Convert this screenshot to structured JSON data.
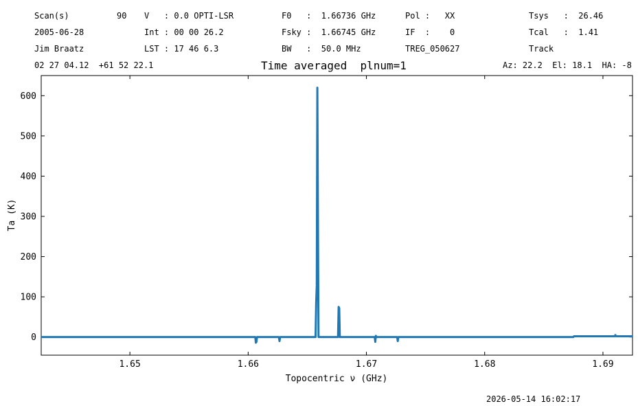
{
  "header": {
    "row1": {
      "scan_label": "Scan(s)",
      "scan_value": "90",
      "velocity": "V   : 0.0 OPTI-LSR",
      "f0": "F0   :  1.66736 GHz",
      "pol": "Pol :   XX",
      "tsys": "Tsys   :  26.46"
    },
    "row2": {
      "date": "2005-06-28",
      "int": "Int : 00 00 26.2",
      "fsky": "Fsky :  1.66745 GHz",
      "if": "IF  :    0",
      "tcal": "Tcal   :  1.41"
    },
    "row3": {
      "observer": "Jim Braatz",
      "lst": "LST : 17 46 6.3",
      "bw": "BW   :  50.0 MHz",
      "project": "TREG_050627",
      "mode": "Track"
    },
    "row4": {
      "coords": "02 27 04.12  +61 52 22.1",
      "azel": "Az: 22.2  El: 18.1  HA: -8"
    }
  },
  "timestamp": "2026-05-14 16:02:17",
  "line_color": "#1f77b4",
  "chart_data": {
    "type": "line",
    "title": "Time averaged  plnum=1",
    "xlabel": "Topocentric ν (GHz)",
    "ylabel": "Ta (K)",
    "xlim": [
      1.6425,
      1.6925
    ],
    "ylim": [
      -45,
      650
    ],
    "xticks": [
      1.65,
      1.66,
      1.67,
      1.68,
      1.69
    ],
    "xtick_labels": [
      "1.65",
      "1.66",
      "1.67",
      "1.68",
      "1.69"
    ],
    "yticks": [
      0,
      100,
      200,
      300,
      400,
      500,
      600
    ],
    "ytick_labels": [
      "0",
      "100",
      "200",
      "300",
      "400",
      "500",
      "600"
    ],
    "grid": false,
    "series": [
      {
        "x": [
          1.6425,
          1.6606,
          1.66065,
          1.6607,
          1.66075,
          1.6626,
          1.66265,
          1.6627,
          1.6657,
          1.66575,
          1.6658,
          1.66585,
          1.6659,
          1.66595,
          1.6676,
          1.66765,
          1.6677,
          1.66775,
          1.6707,
          1.67075,
          1.6708,
          1.67085,
          1.6726,
          1.67265,
          1.6727,
          1.6875,
          1.68755,
          1.691,
          1.69105,
          1.6911,
          1.6925
        ],
        "y": [
          0,
          0,
          -14,
          -12,
          0,
          0,
          -10,
          0,
          0,
          85,
          128,
          620,
          300,
          0,
          0,
          75,
          72,
          0,
          0,
          -12,
          3,
          0,
          0,
          -10,
          0,
          0,
          2,
          2,
          5,
          2,
          2
        ]
      }
    ]
  }
}
